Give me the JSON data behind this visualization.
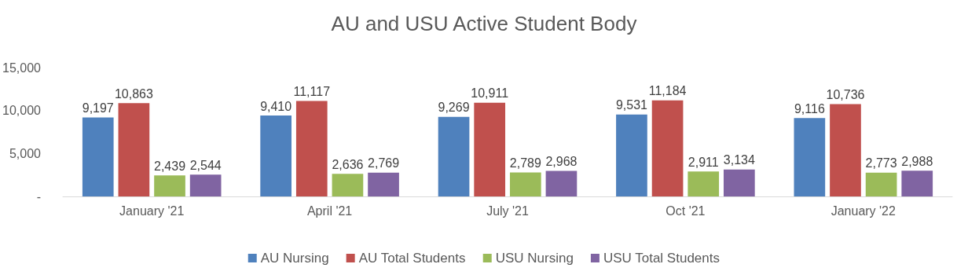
{
  "chart_data": {
    "type": "bar",
    "title": "AU and USU Active Student Body",
    "categories": [
      "January '21",
      "April '21",
      "July '21",
      "Oct '21",
      "January '22"
    ],
    "series": [
      {
        "name": "AU Nursing",
        "color": "#4f81bd",
        "values": [
          9197,
          9410,
          9269,
          9531,
          9116
        ],
        "value_labels": [
          "9,197",
          "9,410",
          "9,269",
          "9,531",
          "9,116"
        ]
      },
      {
        "name": "AU Total Students",
        "color": "#c0504d",
        "values": [
          10863,
          11117,
          10911,
          11184,
          10736
        ],
        "value_labels": [
          "10,863",
          "11,117",
          "10,911",
          "11,184",
          "10,736"
        ]
      },
      {
        "name": "USU Nursing",
        "color": "#9bbb59",
        "values": [
          2439,
          2636,
          2789,
          2911,
          2773
        ],
        "value_labels": [
          "2,439",
          "2,636",
          "2,789",
          "2,911",
          "2,773"
        ]
      },
      {
        "name": "USU Total Students",
        "color": "#8064a2",
        "values": [
          2544,
          2769,
          2968,
          3134,
          2988
        ],
        "value_labels": [
          "2,544",
          "2,769",
          "2,968",
          "3,134",
          "2,988"
        ]
      }
    ],
    "ylim": [
      0,
      15000
    ],
    "yticks": [
      {
        "value": 0,
        "label": "-"
      },
      {
        "value": 5000,
        "label": "5,000"
      },
      {
        "value": 10000,
        "label": "10,000"
      },
      {
        "value": 15000,
        "label": "15,000"
      }
    ],
    "grid": false,
    "legend": "bottom"
  }
}
